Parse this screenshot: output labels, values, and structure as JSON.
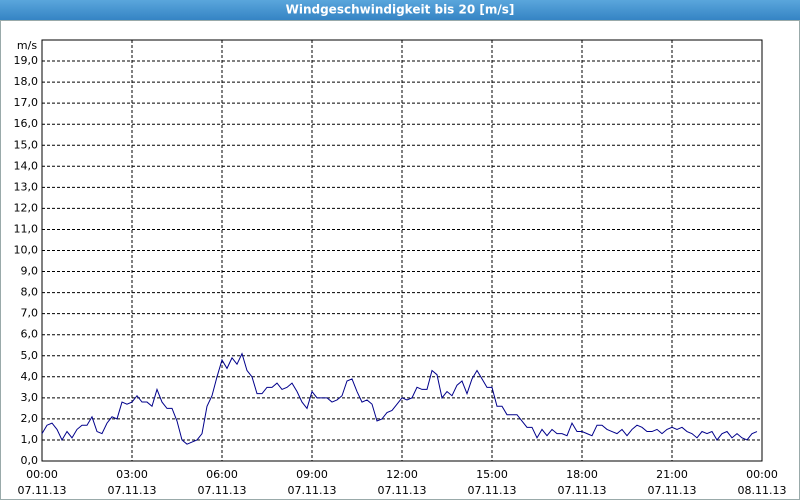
{
  "chart_data": {
    "type": "line",
    "title": "Windgeschwindigkeit bis 20 [m/s]",
    "y_label": "m/s",
    "xlim": [
      0,
      1440
    ],
    "ylim": [
      0,
      20
    ],
    "xticks": [
      {
        "value": 0,
        "label": "00:00",
        "sublabel": "07.11.13"
      },
      {
        "value": 180,
        "label": "03:00",
        "sublabel": "07.11.13"
      },
      {
        "value": 360,
        "label": "06:00",
        "sublabel": "07.11.13"
      },
      {
        "value": 540,
        "label": "09:00",
        "sublabel": "07.11.13"
      },
      {
        "value": 720,
        "label": "12:00",
        "sublabel": "07.11.13"
      },
      {
        "value": 900,
        "label": "15:00",
        "sublabel": "07.11.13"
      },
      {
        "value": 1080,
        "label": "18:00",
        "sublabel": "07.11.13"
      },
      {
        "value": 1260,
        "label": "21:00",
        "sublabel": "07.11.13"
      },
      {
        "value": 1440,
        "label": "00:00",
        "sublabel": "08.11.13"
      }
    ],
    "yticks": [
      {
        "value": 0,
        "label": "0,0"
      },
      {
        "value": 1,
        "label": "1,0"
      },
      {
        "value": 2,
        "label": "2,0"
      },
      {
        "value": 3,
        "label": "3,0"
      },
      {
        "value": 4,
        "label": "4,0"
      },
      {
        "value": 5,
        "label": "5,0"
      },
      {
        "value": 6,
        "label": "6,0"
      },
      {
        "value": 7,
        "label": "7,0"
      },
      {
        "value": 8,
        "label": "8,0"
      },
      {
        "value": 9,
        "label": "9,0"
      },
      {
        "value": 10,
        "label": "10,0"
      },
      {
        "value": 11,
        "label": "11,0"
      },
      {
        "value": 12,
        "label": "12,0"
      },
      {
        "value": 13,
        "label": "13,0"
      },
      {
        "value": 14,
        "label": "14,0"
      },
      {
        "value": 15,
        "label": "15,0"
      },
      {
        "value": 16,
        "label": "16,0"
      },
      {
        "value": 17,
        "label": "17,0"
      },
      {
        "value": 18,
        "label": "18,0"
      },
      {
        "value": 19,
        "label": "19,0"
      }
    ],
    "grid": true,
    "x": [
      0,
      10,
      20,
      30,
      40,
      50,
      60,
      70,
      80,
      90,
      100,
      110,
      120,
      130,
      140,
      150,
      160,
      170,
      180,
      190,
      200,
      210,
      220,
      230,
      240,
      250,
      260,
      270,
      280,
      290,
      300,
      310,
      320,
      330,
      340,
      350,
      360,
      370,
      380,
      390,
      400,
      410,
      420,
      430,
      440,
      450,
      460,
      470,
      480,
      490,
      500,
      510,
      520,
      530,
      540,
      550,
      560,
      570,
      580,
      590,
      600,
      610,
      620,
      630,
      640,
      650,
      660,
      670,
      680,
      690,
      700,
      710,
      720,
      730,
      740,
      750,
      760,
      770,
      780,
      790,
      800,
      810,
      820,
      830,
      840,
      850,
      860,
      870,
      880,
      890,
      900,
      910,
      920,
      930,
      940,
      950,
      960,
      970,
      980,
      990,
      1000,
      1010,
      1020,
      1030,
      1040,
      1050,
      1060,
      1070,
      1080,
      1090,
      1100,
      1110,
      1120,
      1130,
      1140,
      1150,
      1160,
      1170,
      1180,
      1190,
      1200,
      1210,
      1220,
      1230,
      1240,
      1250,
      1260,
      1270,
      1280,
      1290,
      1300,
      1310,
      1320,
      1330,
      1340,
      1350,
      1360,
      1370,
      1380,
      1390,
      1400,
      1410,
      1420,
      1430
    ],
    "series": [
      {
        "color": "#00008b",
        "values": [
          1.3,
          1.7,
          1.8,
          1.5,
          1.0,
          1.4,
          1.1,
          1.5,
          1.7,
          1.7,
          2.1,
          1.4,
          1.3,
          1.8,
          2.1,
          2.0,
          2.8,
          2.7,
          2.8,
          3.1,
          2.8,
          2.8,
          2.6,
          3.4,
          2.8,
          2.5,
          2.5,
          1.9,
          1.0,
          0.8,
          0.9,
          1.0,
          1.3,
          2.6,
          3.1,
          4.0,
          4.8,
          4.4,
          4.9,
          4.6,
          5.1,
          4.3,
          4.0,
          3.2,
          3.2,
          3.5,
          3.5,
          3.7,
          3.4,
          3.5,
          3.7,
          3.3,
          2.8,
          2.5,
          3.3,
          3.0,
          3.0,
          3.0,
          2.8,
          2.9,
          3.1,
          3.8,
          3.9,
          3.3,
          2.8,
          2.9,
          2.7,
          1.9,
          2.0,
          2.3,
          2.4,
          2.7,
          3.0,
          2.9,
          3.0,
          3.5,
          3.4,
          3.4,
          4.3,
          4.1,
          3.0,
          3.3,
          3.1,
          3.6,
          3.8,
          3.2,
          3.9,
          4.3,
          3.9,
          3.5,
          3.5,
          2.6,
          2.6,
          2.2,
          2.2,
          2.2,
          1.9,
          1.6,
          1.6,
          1.1,
          1.5,
          1.2,
          1.5,
          1.3,
          1.3,
          1.2,
          1.8,
          1.4,
          1.4,
          1.3,
          1.2,
          1.7,
          1.7,
          1.5,
          1.4,
          1.3,
          1.5,
          1.2,
          1.5,
          1.7,
          1.6,
          1.4,
          1.4,
          1.5,
          1.3,
          1.5,
          1.6,
          1.5,
          1.6,
          1.4,
          1.3,
          1.1,
          1.4,
          1.3,
          1.4,
          1.0,
          1.3,
          1.4,
          1.1,
          1.3,
          1.1,
          1.0,
          1.3,
          1.4
        ]
      }
    ]
  }
}
